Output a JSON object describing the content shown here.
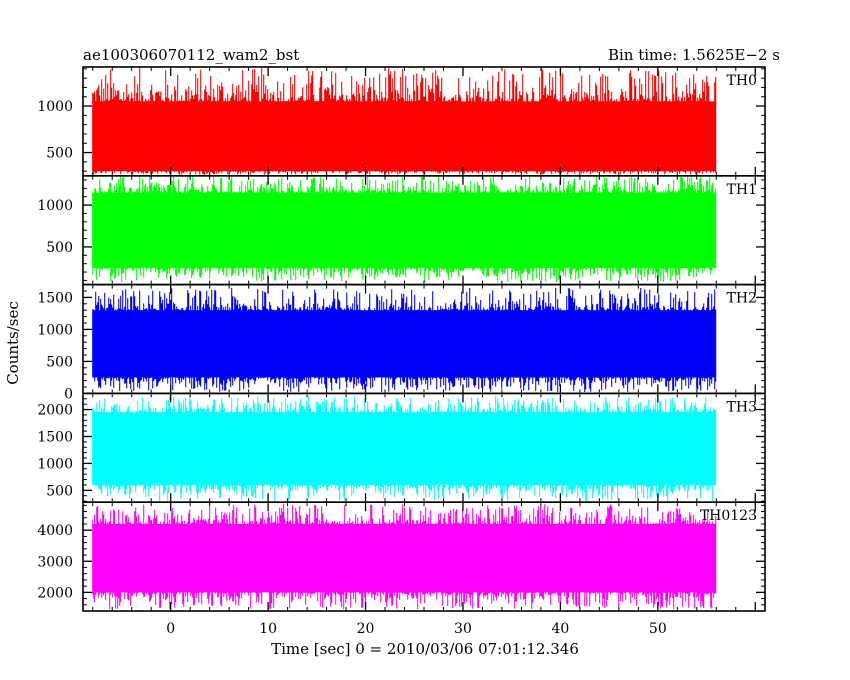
{
  "chart_data": {
    "type": "line",
    "title_left": "ae100306070112_wam2_bst",
    "title_right": "Bin time: 1.5625E−2 s",
    "xlabel": "Time [sec] 0 = 2010/03/06 07:01:12.346",
    "ylabel": "Counts/sec",
    "xlim": [
      -9,
      61
    ],
    "x_data_range": [
      -8,
      56
    ],
    "xticks": [
      0,
      10,
      20,
      30,
      40,
      50
    ],
    "xtick_labels": [
      "0",
      "10",
      "20",
      "30",
      "40",
      "50"
    ],
    "panels": [
      {
        "name": "TH0",
        "color": "#ff0000",
        "ylim": [
          250,
          1420
        ],
        "yticks": [
          500,
          1000
        ],
        "ytick_labels": [
          "500",
          "1000"
        ],
        "mean": 650,
        "typical_low": 300,
        "typical_high": 1050,
        "min": 260,
        "max": 1420
      },
      {
        "name": "TH1",
        "color": "#00ff00",
        "ylim": [
          50,
          1350
        ],
        "yticks": [
          500,
          1000
        ],
        "ytick_labels": [
          "500",
          "1000"
        ],
        "mean": 680,
        "typical_low": 250,
        "typical_high": 1150,
        "min": 80,
        "max": 1350
      },
      {
        "name": "TH2",
        "color": "#0000ff",
        "ylim": [
          0,
          1700
        ],
        "yticks": [
          0,
          500,
          1000,
          1500
        ],
        "ytick_labels": [
          "0",
          "500",
          "1000",
          "1500"
        ],
        "mean": 780,
        "typical_low": 250,
        "typical_high": 1300,
        "min": 20,
        "max": 1650
      },
      {
        "name": "TH3",
        "color": "#00ffff",
        "ylim": [
          280,
          2300
        ],
        "yticks": [
          500,
          1000,
          1500,
          2000
        ],
        "ytick_labels": [
          "500",
          "1000",
          "1500",
          "2000"
        ],
        "mean": 1300,
        "typical_low": 600,
        "typical_high": 1950,
        "min": 300,
        "max": 2250
      },
      {
        "name": "TH0123",
        "color": "#ff00ff",
        "ylim": [
          1400,
          4900
        ],
        "yticks": [
          2000,
          3000,
          4000
        ],
        "ytick_labels": [
          "2000",
          "3000",
          "4000"
        ],
        "mean": 3000,
        "typical_low": 2000,
        "typical_high": 4200,
        "min": 1450,
        "max": 4850
      }
    ],
    "grid": false,
    "legend": "none"
  }
}
